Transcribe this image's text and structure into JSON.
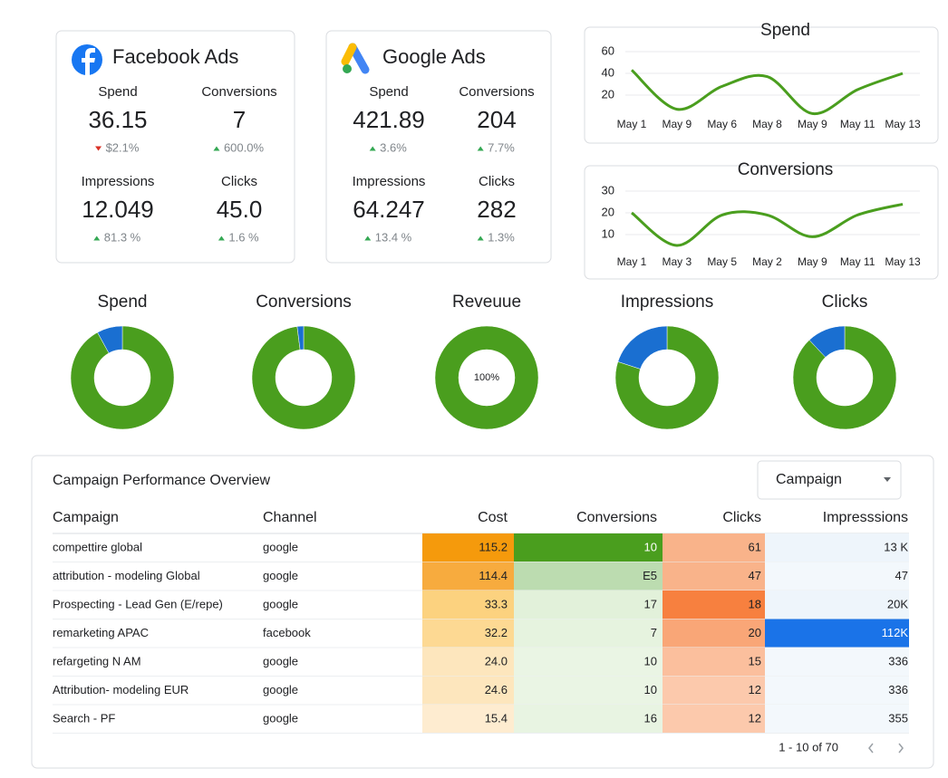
{
  "cards": [
    {
      "title": "Facebook Ads",
      "metrics": [
        {
          "label": "Spend",
          "value": "36.15",
          "change": "$2.1%",
          "direction": "down"
        },
        {
          "label": "Conversions",
          "value": "7",
          "change": "600.0%",
          "direction": "up"
        },
        {
          "label": "Impressions",
          "value": "12.049",
          "change": "81.3 %",
          "direction": "up"
        },
        {
          "label": "Clicks",
          "value": "45.0",
          "change": "1.6 %",
          "direction": "up"
        }
      ]
    },
    {
      "title": "Google Ads",
      "metrics": [
        {
          "label": "Spend",
          "value": "421.89",
          "change": "3.6%",
          "direction": "up"
        },
        {
          "label": "Conversions",
          "value": "204",
          "change": "7.7%",
          "direction": "up"
        },
        {
          "label": "Impressions",
          "value": "64.247",
          "change": "13.4 %",
          "direction": "up"
        },
        {
          "label": "Clicks",
          "value": "282",
          "change": "1.3%",
          "direction": "up"
        }
      ]
    }
  ],
  "chart_data": [
    {
      "type": "line",
      "title": "Spend",
      "categories": [
        "May 1",
        "May 9",
        "May 6",
        "May 8",
        "May 9",
        "May 11",
        "May 13"
      ],
      "values": [
        43,
        7,
        28,
        37,
        3,
        25,
        40
      ],
      "color": "#4a9e1e",
      "ylim": [
        0,
        60
      ],
      "yticks": [
        20,
        40,
        60
      ],
      "grid": true
    },
    {
      "type": "line",
      "title": "Conversions",
      "categories": [
        "May 1",
        "May 3",
        "May 5",
        "May 2",
        "May 9",
        "May 11",
        "May 13"
      ],
      "values": [
        20,
        5,
        19,
        19,
        9,
        19,
        24
      ],
      "color": "#4a9e1e",
      "ylim": [
        0,
        30
      ],
      "yticks": [
        10,
        20,
        30
      ],
      "grid": true
    },
    {
      "type": "pie",
      "title": "Spend",
      "values": [
        92,
        8
      ],
      "colors": [
        "#4a9e1e",
        "#1a6fd1"
      ]
    },
    {
      "type": "pie",
      "title": "Conversions",
      "values": [
        98,
        2
      ],
      "colors": [
        "#4a9e1e",
        "#1a6fd1"
      ]
    },
    {
      "type": "pie",
      "title": "Reveuue",
      "values": [
        100
      ],
      "value_labels": [
        "100%"
      ],
      "colors": [
        "#4a9e1e"
      ]
    },
    {
      "type": "pie",
      "title": "Impressions",
      "values": [
        80,
        20
      ],
      "colors": [
        "#4a9e1e",
        "#1a6fd1"
      ]
    },
    {
      "type": "pie",
      "title": "Clicks",
      "values": [
        88,
        12
      ],
      "colors": [
        "#4a9e1e",
        "#1a6fd1"
      ]
    }
  ],
  "table": {
    "title": "Campaign Performance Overview",
    "filter": "Campaign",
    "columns": [
      "Campaign",
      "Channel",
      "Cost",
      "Conversions",
      "Clicks",
      "Impresssions"
    ],
    "rows": [
      [
        "compettire global",
        "google",
        "115.2",
        "10",
        "61",
        "13 K"
      ],
      [
        "attribution - modeling Global",
        "google",
        "114.4",
        "E5",
        "47",
        "47"
      ],
      [
        "Prospecting - Lead Gen (E/repe)",
        "google",
        "33.3",
        "17",
        "18",
        "20K"
      ],
      [
        "remarketing APAC",
        "facebook",
        "32.2",
        "7",
        "20",
        "112K"
      ],
      [
        "refargeting N AM",
        "google",
        "24.0",
        "10",
        "15",
        "336"
      ],
      [
        "Attribution- modeling EUR",
        "google",
        "24.6",
        "10",
        "12",
        "336"
      ],
      [
        "Search - PF",
        "google",
        "15.4",
        "16",
        "12",
        "355"
      ]
    ],
    "heat": [
      [
        "#f59a0c",
        "#4a9e1e",
        "#f9b38a",
        "#eef5fb"
      ],
      [
        "#f7ab3e",
        "#bcdcb0",
        "#f9b38a",
        "#f3f8fc"
      ],
      [
        "#fcd27f",
        "#e2f1da",
        "#f7803f",
        "#eef5fb"
      ],
      [
        "#fdd993",
        "#e6f3df",
        "#f9a677",
        "#1a73e8"
      ],
      [
        "#fde6bd",
        "#eaf5e4",
        "#fbbf9d",
        "#f3f8fc"
      ],
      [
        "#fde6bd",
        "#eaf5e4",
        "#fcc9ac",
        "#f3f8fc"
      ],
      [
        "#feecd0",
        "#e8f4e2",
        "#fcc9ac",
        "#f3f8fc"
      ]
    ],
    "pagination": "1 - 10 of 70"
  }
}
